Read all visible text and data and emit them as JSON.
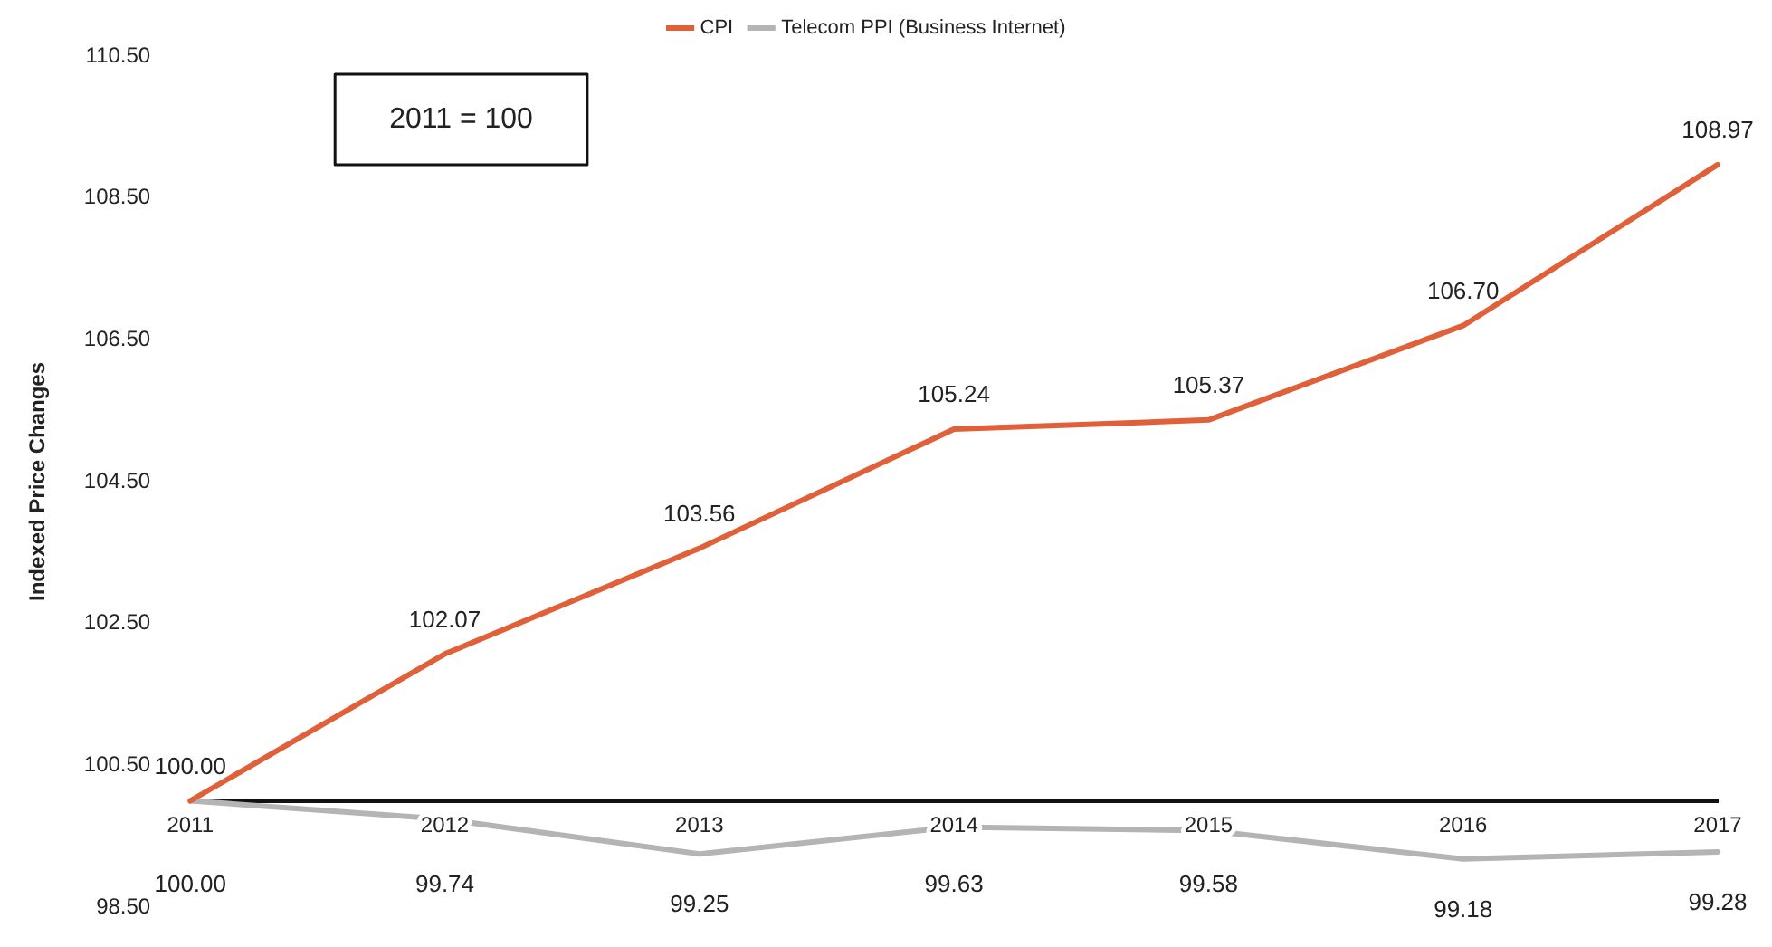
{
  "chart_data": {
    "type": "line",
    "ylabel": "Indexed Price Changes",
    "categories": [
      "2011",
      "2012",
      "2013",
      "2014",
      "2015",
      "2016",
      "2017"
    ],
    "series": [
      {
        "name": "CPI",
        "color": "#e0603a",
        "values": [
          100.0,
          102.07,
          103.56,
          105.24,
          105.37,
          106.7,
          108.97
        ],
        "value_labels": [
          "100.00",
          "102.07",
          "103.56",
          "105.24",
          "105.37",
          "106.70",
          "108.97"
        ]
      },
      {
        "name": "Telecom PPI (Business Internet)",
        "color": "#b4b4b4",
        "values": [
          100.0,
          99.74,
          99.25,
          99.63,
          99.58,
          99.18,
          99.28
        ],
        "value_labels": [
          "100.00",
          "99.74",
          "99.25",
          "99.63",
          "99.58",
          "99.18",
          "99.28"
        ]
      }
    ],
    "ylim": [
      98.5,
      110.5
    ],
    "yticks": [
      {
        "value": 98.5,
        "label": "98.50"
      },
      {
        "value": 100.5,
        "label": "100.50"
      },
      {
        "value": 102.5,
        "label": "102.50"
      },
      {
        "value": 104.5,
        "label": "104.50"
      },
      {
        "value": 106.5,
        "label": "106.50"
      },
      {
        "value": 108.5,
        "label": "108.50"
      },
      {
        "value": 110.5,
        "label": "110.50"
      }
    ],
    "annotations": [
      "2011 = 100"
    ],
    "grid": false,
    "legend": "top",
    "marker": "none",
    "line_style": "solid"
  }
}
